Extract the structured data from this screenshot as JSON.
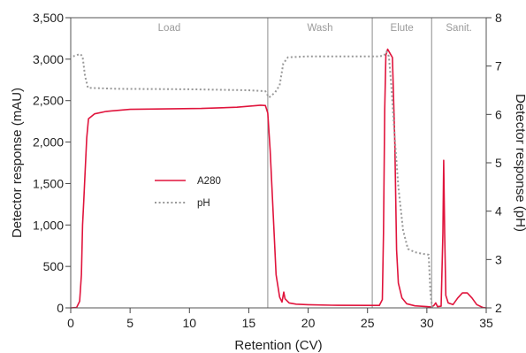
{
  "chart_data": {
    "type": "line",
    "xlabel": "Retention (CV)",
    "ylabel": "Detector response (mAU)",
    "y2label": "Detector response (pH)",
    "xlim": [
      0,
      35
    ],
    "ylim": [
      0,
      3500
    ],
    "y2lim": [
      2,
      8
    ],
    "xticks": [
      0,
      5,
      10,
      15,
      20,
      25,
      30,
      35
    ],
    "yticks": [
      0,
      500,
      1000,
      1500,
      2000,
      2500,
      3000,
      3500
    ],
    "y2ticks": [
      2,
      3,
      4,
      5,
      6,
      7,
      8
    ],
    "grid": false,
    "legend_position": "center-left",
    "phases": [
      {
        "label": "Load",
        "start": 0,
        "end": 16.6
      },
      {
        "label": "Wash",
        "start": 16.6,
        "end": 25.4
      },
      {
        "label": "Elute",
        "start": 25.4,
        "end": 30.4
      },
      {
        "label": "Sanit.",
        "start": 30.4,
        "end": 35
      }
    ],
    "series": [
      {
        "name": "A280",
        "axis": "left",
        "color": "#e0143c",
        "style": "solid",
        "points": [
          [
            0,
            0
          ],
          [
            0.5,
            5
          ],
          [
            0.75,
            80
          ],
          [
            0.9,
            400
          ],
          [
            1.0,
            1000
          ],
          [
            1.1,
            1300
          ],
          [
            1.2,
            1600
          ],
          [
            1.35,
            2050
          ],
          [
            1.5,
            2280
          ],
          [
            2,
            2340
          ],
          [
            3,
            2370
          ],
          [
            5,
            2395
          ],
          [
            8,
            2400
          ],
          [
            11,
            2405
          ],
          [
            14,
            2420
          ],
          [
            16,
            2445
          ],
          [
            16.4,
            2440
          ],
          [
            16.6,
            2350
          ],
          [
            16.8,
            1900
          ],
          [
            17.0,
            1300
          ],
          [
            17.3,
            400
          ],
          [
            17.6,
            130
          ],
          [
            17.8,
            70
          ],
          [
            17.95,
            190
          ],
          [
            18.05,
            110
          ],
          [
            18.4,
            60
          ],
          [
            19,
            45
          ],
          [
            20,
            38
          ],
          [
            22,
            32
          ],
          [
            25,
            30
          ],
          [
            26,
            30
          ],
          [
            26.25,
            100
          ],
          [
            26.35,
            900
          ],
          [
            26.45,
            2400
          ],
          [
            26.55,
            3050
          ],
          [
            26.7,
            3120
          ],
          [
            26.9,
            3070
          ],
          [
            27.1,
            3020
          ],
          [
            27.3,
            2000
          ],
          [
            27.45,
            700
          ],
          [
            27.6,
            300
          ],
          [
            27.9,
            120
          ],
          [
            28.3,
            50
          ],
          [
            29,
            25
          ],
          [
            30,
            15
          ],
          [
            30.4,
            10
          ],
          [
            30.6,
            30
          ],
          [
            30.75,
            60
          ],
          [
            30.9,
            15
          ],
          [
            31.2,
            20
          ],
          [
            31.35,
            900
          ],
          [
            31.42,
            1780
          ],
          [
            31.5,
            900
          ],
          [
            31.6,
            150
          ],
          [
            31.8,
            60
          ],
          [
            32.2,
            40
          ],
          [
            32.6,
            120
          ],
          [
            33,
            180
          ],
          [
            33.4,
            180
          ],
          [
            33.8,
            120
          ],
          [
            34.2,
            40
          ],
          [
            34.7,
            5
          ],
          [
            35,
            0
          ]
        ]
      },
      {
        "name": "pH",
        "axis": "right",
        "color": "#999999",
        "style": "dotted",
        "points": [
          [
            0.2,
            7.2
          ],
          [
            0.8,
            7.25
          ],
          [
            1.0,
            7.2
          ],
          [
            1.2,
            6.8
          ],
          [
            1.45,
            6.55
          ],
          [
            4,
            6.53
          ],
          [
            10,
            6.52
          ],
          [
            15,
            6.5
          ],
          [
            16.4,
            6.48
          ],
          [
            16.7,
            6.35
          ],
          [
            17.2,
            6.45
          ],
          [
            17.6,
            6.6
          ],
          [
            17.9,
            7.05
          ],
          [
            18.3,
            7.18
          ],
          [
            20,
            7.2
          ],
          [
            23,
            7.2
          ],
          [
            25,
            7.2
          ],
          [
            26,
            7.2
          ],
          [
            26.4,
            7.22
          ],
          [
            26.6,
            7.3
          ],
          [
            26.8,
            7.2
          ],
          [
            27.0,
            6.6
          ],
          [
            27.3,
            5.5
          ],
          [
            27.6,
            4.5
          ],
          [
            28.0,
            3.6
          ],
          [
            28.4,
            3.22
          ],
          [
            29,
            3.15
          ],
          [
            29.6,
            3.12
          ],
          [
            30.15,
            3.1
          ],
          [
            30.3,
            2.3
          ],
          [
            30.45,
            2.0
          ]
        ]
      }
    ]
  }
}
